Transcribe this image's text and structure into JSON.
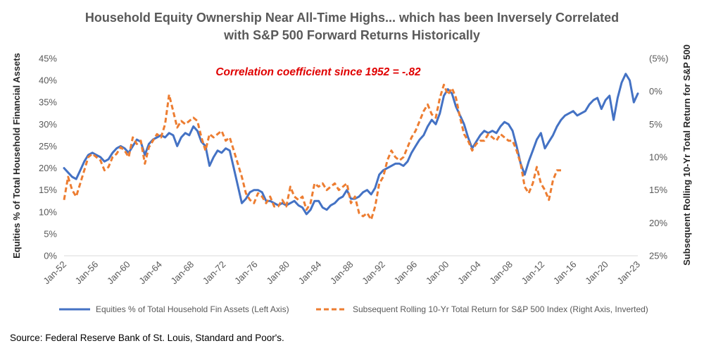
{
  "chart_data": {
    "type": "line",
    "title_line1": "Household Equity Ownership Near All-Time Highs... which has been Inversely Correlated",
    "title_line2": "with S&P 500 Forward Returns Historically",
    "ylabel_left": "Equities % of Total Household Financial Assets",
    "ylabel_right": "Subsequent Rolling 10-Yr Total Return for S&P 500",
    "annotation": "Correlation coefficient since 1952 = -.82",
    "ylim_left": [
      0,
      45
    ],
    "ylim_right_inverted": [
      -5,
      25
    ],
    "left_ticks": [
      "0%",
      "5%",
      "10%",
      "15%",
      "20%",
      "25%",
      "30%",
      "35%",
      "40%",
      "45%"
    ],
    "right_ticks": [
      "(5%)",
      "0%",
      "5%",
      "10%",
      "15%",
      "20%",
      "25%"
    ],
    "x_ticks": [
      "Jan-52",
      "Jan-56",
      "Jan-60",
      "Jan-64",
      "Jan-68",
      "Jan-72",
      "Jan-76",
      "Jan-80",
      "Jan-84",
      "Jan-88",
      "Jan-92",
      "Jan-96",
      "Jan-00",
      "Jan-04",
      "Jan-08",
      "Jan-12",
      "Jan-16",
      "Jan-20",
      "Jan-23"
    ],
    "x_range": [
      1952,
      2023
    ],
    "grid": "none",
    "legend_position": "bottom",
    "series": [
      {
        "name": "Equities % of Total Household Fin Assets (Left Axis)",
        "axis": "left",
        "color": "#4472c4",
        "style": "solid",
        "x": [
          1952.0,
          1952.5,
          1953.0,
          1953.5,
          1954.0,
          1954.5,
          1955.0,
          1955.5,
          1956.0,
          1956.5,
          1957.0,
          1957.5,
          1958.0,
          1958.5,
          1959.0,
          1959.5,
          1960.0,
          1960.5,
          1961.0,
          1961.5,
          1962.0,
          1962.5,
          1963.0,
          1963.5,
          1964.0,
          1964.5,
          1965.0,
          1965.5,
          1966.0,
          1966.5,
          1967.0,
          1967.5,
          1968.0,
          1968.5,
          1969.0,
          1969.5,
          1970.0,
          1970.5,
          1971.0,
          1971.5,
          1972.0,
          1972.5,
          1973.0,
          1973.5,
          1974.0,
          1974.5,
          1975.0,
          1975.5,
          1976.0,
          1976.5,
          1977.0,
          1977.5,
          1978.0,
          1978.5,
          1979.0,
          1979.5,
          1980.0,
          1980.5,
          1981.0,
          1981.5,
          1982.0,
          1982.5,
          1983.0,
          1983.5,
          1984.0,
          1984.5,
          1985.0,
          1985.5,
          1986.0,
          1986.5,
          1987.0,
          1987.5,
          1988.0,
          1988.5,
          1989.0,
          1989.5,
          1990.0,
          1990.5,
          1991.0,
          1991.5,
          1992.0,
          1992.5,
          1993.0,
          1993.5,
          1994.0,
          1994.5,
          1995.0,
          1995.5,
          1996.0,
          1996.5,
          1997.0,
          1997.5,
          1998.0,
          1998.5,
          1999.0,
          1999.5,
          2000.0,
          2000.5,
          2001.0,
          2001.5,
          2002.0,
          2002.5,
          2003.0,
          2003.5,
          2004.0,
          2004.5,
          2005.0,
          2005.5,
          2006.0,
          2006.5,
          2007.0,
          2007.5,
          2008.0,
          2008.5,
          2009.0,
          2009.5,
          2010.0,
          2010.5,
          2011.0,
          2011.5,
          2012.0,
          2012.5,
          2013.0,
          2013.5,
          2014.0,
          2014.5,
          2015.0,
          2015.5,
          2016.0,
          2016.5,
          2017.0,
          2017.5,
          2018.0,
          2018.5,
          2019.0,
          2019.5,
          2020.0,
          2020.5,
          2021.0,
          2021.5,
          2022.0,
          2022.5,
          2023.0
        ],
        "y": [
          20.0,
          19.0,
          18.0,
          17.5,
          19.5,
          21.5,
          23.0,
          23.5,
          23.0,
          22.5,
          21.5,
          22.0,
          23.5,
          24.5,
          25.0,
          24.5,
          23.5,
          25.0,
          26.5,
          26.0,
          23.0,
          25.5,
          26.5,
          27.0,
          27.5,
          27.0,
          28.0,
          27.5,
          25.0,
          27.0,
          28.0,
          27.5,
          29.5,
          28.5,
          26.0,
          25.0,
          20.5,
          22.5,
          24.0,
          23.5,
          24.5,
          24.0,
          20.0,
          16.0,
          12.0,
          13.0,
          14.5,
          15.0,
          15.0,
          14.5,
          12.5,
          12.5,
          12.0,
          11.5,
          12.0,
          11.5,
          12.0,
          12.5,
          11.5,
          11.0,
          9.5,
          10.5,
          12.5,
          12.5,
          11.0,
          10.5,
          11.5,
          12.0,
          13.0,
          13.5,
          15.0,
          13.0,
          13.0,
          13.5,
          14.5,
          15.0,
          14.0,
          15.5,
          18.5,
          19.5,
          20.0,
          20.5,
          21.0,
          21.0,
          20.5,
          21.5,
          23.5,
          25.0,
          26.5,
          27.5,
          29.5,
          31.0,
          30.0,
          32.5,
          36.5,
          38.0,
          37.0,
          34.0,
          32.0,
          30.0,
          27.0,
          24.5,
          26.0,
          27.5,
          28.5,
          28.0,
          28.5,
          28.0,
          29.5,
          30.5,
          30.0,
          28.5,
          25.0,
          21.0,
          18.5,
          21.5,
          24.0,
          26.5,
          28.0,
          24.5,
          26.0,
          27.5,
          29.5,
          31.0,
          32.0,
          32.5,
          33.0,
          32.0,
          32.5,
          33.0,
          34.5,
          35.5,
          36.0,
          33.5,
          35.5,
          36.5,
          31.0,
          36.0,
          39.5,
          41.5,
          40.0,
          35.0,
          37.0
        ]
      },
      {
        "name": "Subsequent Rolling 10-Yr Total Return for S&P 500 Index (Right Axis, Inverted)",
        "axis": "right",
        "color": "#ed7d31",
        "style": "dashed",
        "x": [
          1952.0,
          1952.5,
          1953.0,
          1953.5,
          1954.0,
          1954.5,
          1955.0,
          1955.5,
          1956.0,
          1956.5,
          1957.0,
          1957.5,
          1958.0,
          1958.5,
          1959.0,
          1959.5,
          1960.0,
          1960.5,
          1961.0,
          1961.5,
          1962.0,
          1962.5,
          1963.0,
          1963.5,
          1964.0,
          1964.5,
          1965.0,
          1965.5,
          1966.0,
          1966.5,
          1967.0,
          1967.5,
          1968.0,
          1968.5,
          1969.0,
          1969.5,
          1970.0,
          1970.5,
          1971.0,
          1971.5,
          1972.0,
          1972.5,
          1973.0,
          1973.5,
          1974.0,
          1974.5,
          1975.0,
          1975.5,
          1976.0,
          1976.5,
          1977.0,
          1977.5,
          1978.0,
          1978.5,
          1979.0,
          1979.5,
          1980.0,
          1980.5,
          1981.0,
          1981.5,
          1982.0,
          1982.5,
          1983.0,
          1983.5,
          1984.0,
          1984.5,
          1985.0,
          1985.5,
          1986.0,
          1986.5,
          1987.0,
          1987.5,
          1988.0,
          1988.5,
          1989.0,
          1989.5,
          1990.0,
          1990.5,
          1991.0,
          1991.5,
          1992.0,
          1992.5,
          1993.0,
          1993.5,
          1994.0,
          1994.5,
          1995.0,
          1995.5,
          1996.0,
          1996.5,
          1997.0,
          1997.5,
          1998.0,
          1998.5,
          1999.0,
          1999.5,
          2000.0,
          2000.5,
          2001.0,
          2001.5,
          2002.0,
          2002.5,
          2003.0,
          2003.5,
          2004.0,
          2004.5,
          2005.0,
          2005.5,
          2006.0,
          2006.5,
          2007.0,
          2007.5,
          2008.0,
          2008.5,
          2009.0,
          2009.5,
          2010.0,
          2010.5,
          2011.0,
          2011.5,
          2012.0,
          2012.5,
          2013.0,
          2013.5
        ],
        "y": [
          16.5,
          13.0,
          15.0,
          16.0,
          14.0,
          12.0,
          10.0,
          9.5,
          10.0,
          10.5,
          12.0,
          11.5,
          10.0,
          9.5,
          8.5,
          9.0,
          10.0,
          7.0,
          8.0,
          7.5,
          11.0,
          8.5,
          7.5,
          6.5,
          7.0,
          5.0,
          0.5,
          3.0,
          5.5,
          4.5,
          5.0,
          4.5,
          4.0,
          4.5,
          7.0,
          9.0,
          6.5,
          7.0,
          6.5,
          6.0,
          7.5,
          7.0,
          9.0,
          11.0,
          13.0,
          15.5,
          16.5,
          17.0,
          15.5,
          16.0,
          17.0,
          16.0,
          17.5,
          17.5,
          16.5,
          17.5,
          14.5,
          16.0,
          16.5,
          16.0,
          18.0,
          17.0,
          14.0,
          14.5,
          14.0,
          15.0,
          14.5,
          14.0,
          15.0,
          14.5,
          14.0,
          17.0,
          16.0,
          18.5,
          19.0,
          18.5,
          19.5,
          17.5,
          14.0,
          13.0,
          10.5,
          9.0,
          10.0,
          10.5,
          10.0,
          8.5,
          7.0,
          6.0,
          4.5,
          3.0,
          2.0,
          3.5,
          4.0,
          1.0,
          -1.0,
          0.5,
          -0.5,
          1.0,
          4.0,
          6.5,
          7.5,
          9.0,
          8.0,
          7.5,
          7.5,
          6.5,
          7.0,
          7.5,
          6.5,
          7.0,
          7.5,
          7.5,
          9.0,
          11.0,
          14.5,
          15.5,
          14.0,
          11.5,
          14.0,
          15.0,
          16.5,
          13.5,
          12.0,
          12.0
        ]
      }
    ]
  },
  "source": "Source: Federal Reserve Bank of St. Louis, Standard and Poor's."
}
